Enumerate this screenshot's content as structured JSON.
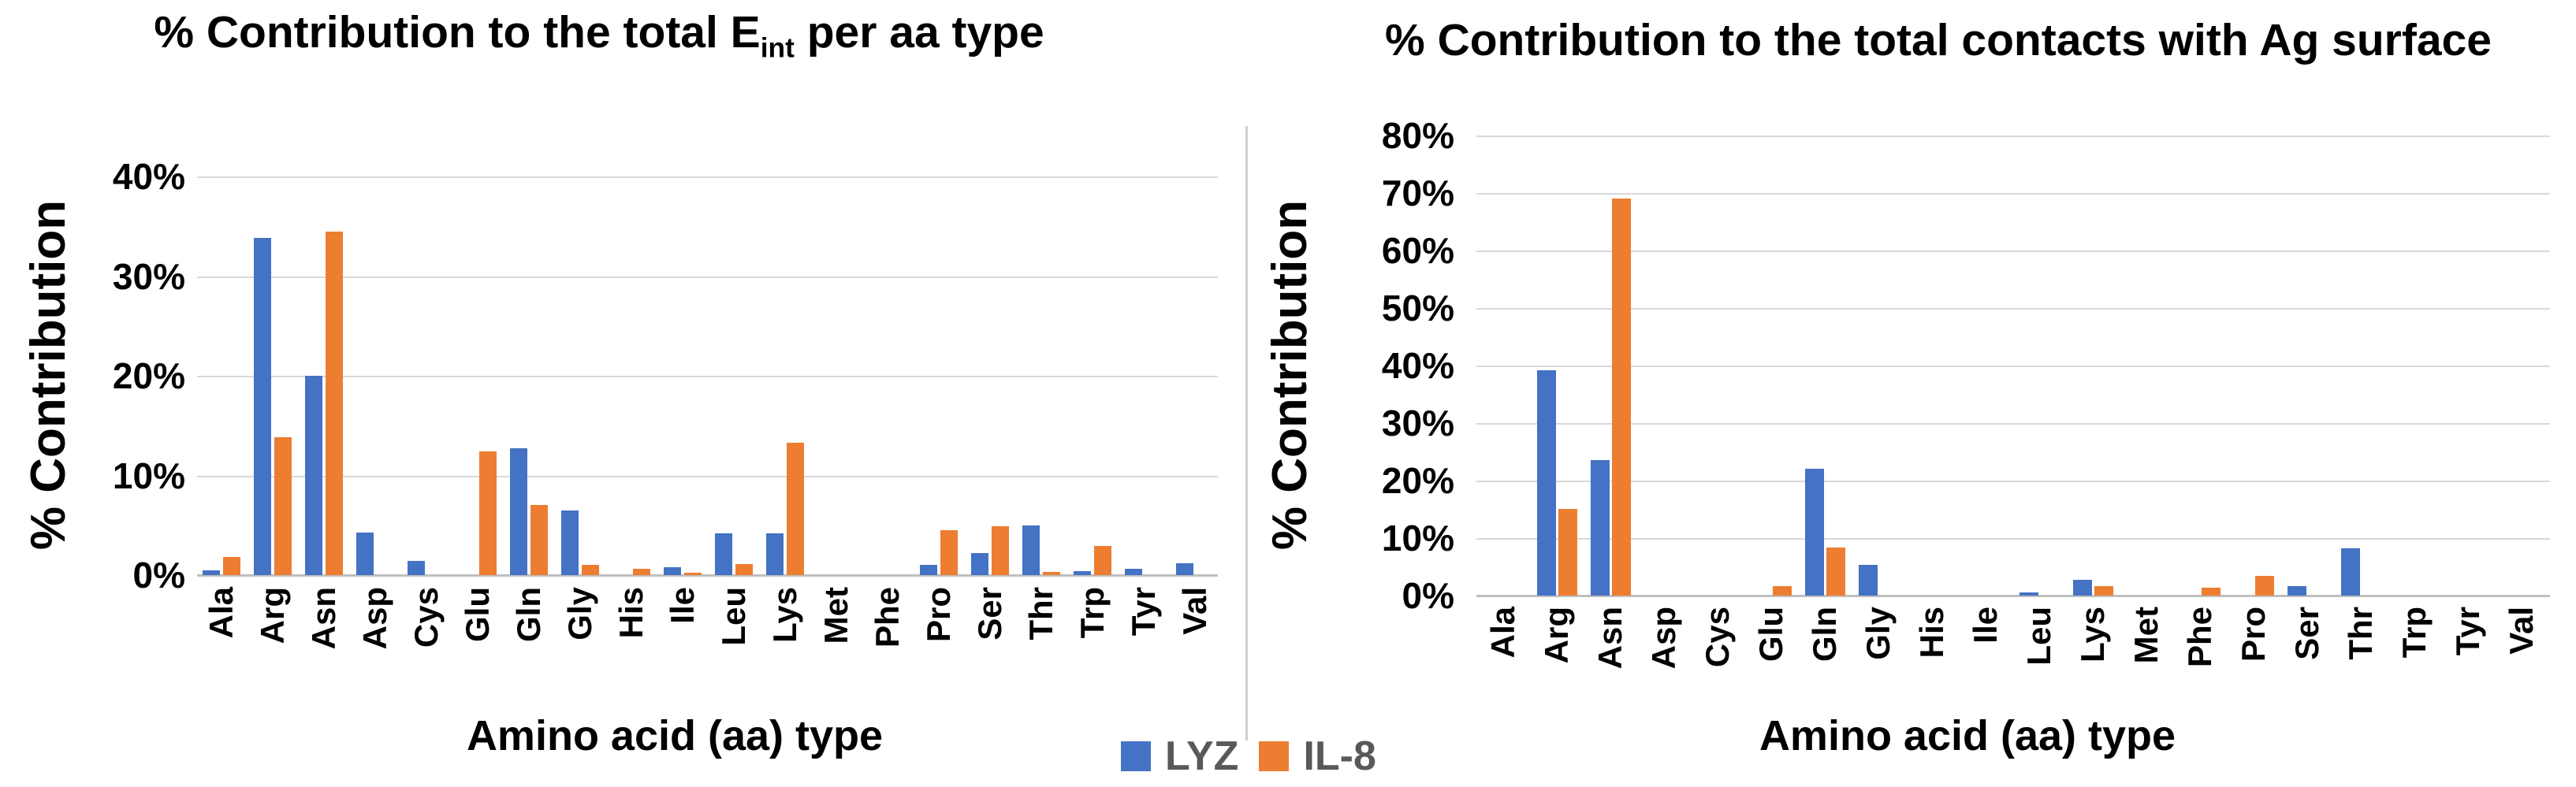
{
  "figure": {
    "background": "#ffffff",
    "series_colors": {
      "LYZ": "#4472C4",
      "IL-8": "#ED7D31"
    },
    "gridline_color": "#d9d9d9",
    "axisline_color": "#bfbfbf",
    "legend_text_color": "#595959"
  },
  "legend": {
    "items": [
      {
        "label": "LYZ",
        "color": "#4472C4"
      },
      {
        "label": "IL-8",
        "color": "#ED7D31"
      }
    ]
  },
  "chart_data": [
    {
      "type": "bar",
      "title": "% Contribution to the total Eint per aa type",
      "title_parts": {
        "pre": "% Contribution to the total E",
        "sub": "int",
        "post": " per aa type"
      },
      "xlabel": "Amino acid (aa) type",
      "ylabel": "% Contribution",
      "ylim": [
        0,
        40
      ],
      "ytick_step": 10,
      "yticks": [
        "0%",
        "10%",
        "20%",
        "30%",
        "40%"
      ],
      "grid": true,
      "categories": [
        "Ala",
        "Arg",
        "Asn",
        "Asp",
        "Cys",
        "Glu",
        "Gln",
        "Gly",
        "His",
        "Ile",
        "Leu",
        "Lys",
        "Met",
        "Phe",
        "Pro",
        "Ser",
        "Thr",
        "Trp",
        "Tyr",
        "Val"
      ],
      "series": [
        {
          "name": "LYZ",
          "color": "#4472C4",
          "values": [
            0.5,
            33.8,
            20.0,
            4.3,
            1.4,
            0,
            12.7,
            6.5,
            0,
            0.8,
            4.2,
            4.2,
            0,
            0,
            1.0,
            2.2,
            5.0,
            0.4,
            0.6,
            1.2
          ]
        },
        {
          "name": "IL-8",
          "color": "#ED7D31",
          "values": [
            1.8,
            13.8,
            34.5,
            0,
            0,
            12.4,
            7.0,
            1.0,
            0.6,
            0.2,
            1.1,
            13.3,
            0,
            0,
            4.5,
            4.9,
            0.3,
            2.9,
            0,
            0
          ]
        }
      ]
    },
    {
      "type": "bar",
      "title": "% Contribution to the total contacts with Ag surface",
      "title_parts": {
        "pre": "% Contribution to the total contacts with Ag surface",
        "sub": "",
        "post": ""
      },
      "xlabel": "Amino acid (aa) type",
      "ylabel": "% Contribution",
      "ylim": [
        0,
        80
      ],
      "ytick_step": 10,
      "yticks": [
        "0%",
        "10%",
        "20%",
        "30%",
        "40%",
        "50%",
        "60%",
        "70%",
        "80%"
      ],
      "grid": true,
      "categories": [
        "Ala",
        "Arg",
        "Asn",
        "Asp",
        "Cys",
        "Glu",
        "Gln",
        "Gly",
        "His",
        "Ile",
        "Leu",
        "Lys",
        "Met",
        "Phe",
        "Pro",
        "Ser",
        "Thr",
        "Trp",
        "Tyr",
        "Val"
      ],
      "series": [
        {
          "name": "LYZ",
          "color": "#4472C4",
          "values": [
            0,
            39.2,
            23.5,
            0,
            0,
            0,
            22.0,
            5.3,
            0,
            0,
            0.5,
            2.8,
            0,
            0,
            0,
            1.6,
            8.2,
            0,
            0,
            0
          ]
        },
        {
          "name": "IL-8",
          "color": "#ED7D31",
          "values": [
            0,
            15.0,
            69.0,
            0,
            0,
            1.7,
            8.4,
            0,
            0,
            0,
            0,
            1.7,
            0,
            1.4,
            3.4,
            0,
            0,
            0,
            0,
            0
          ]
        }
      ]
    }
  ]
}
